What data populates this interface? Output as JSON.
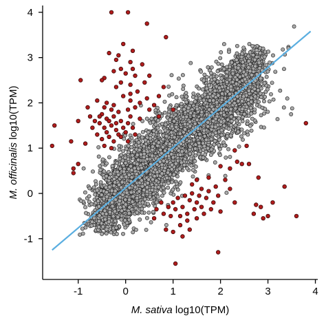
{
  "chart_data": {
    "type": "scatter",
    "xlabel_species": "M. sativa",
    "xlabel_unit": " log10(TPM)",
    "ylabel_species": "M. officinalis",
    "ylabel_unit": " log10(TPM)",
    "xlim": [
      -1.75,
      4.05
    ],
    "ylim": [
      -1.9,
      4.15
    ],
    "x_ticks": [
      "-1",
      "0",
      "1",
      "2",
      "3",
      "4"
    ],
    "y_ticks": [
      "-1",
      "0",
      "1",
      "2",
      "3",
      "4"
    ],
    "grid": false,
    "legend": "none",
    "colors": {
      "background_points_fill": "#a9a9a9",
      "background_points_stroke": "#2b2b2b",
      "highlight_points_fill": "#b01c1c",
      "highlight_points_stroke": "#3a0a0a",
      "fit_line": "#5aaee0"
    },
    "fit_line": {
      "x": [
        -1.55,
        3.9
      ],
      "y": [
        -1.25,
        3.58
      ]
    },
    "highlight_points": [
      [
        -0.3,
        4.0
      ],
      [
        0.05,
        4.0
      ],
      [
        0.45,
        3.75
      ],
      [
        0.85,
        3.45
      ],
      [
        -0.15,
        3.05
      ],
      [
        -0.2,
        2.95
      ],
      [
        -0.35,
        3.1
      ],
      [
        -0.05,
        3.3
      ],
      [
        0.1,
        2.9
      ],
      [
        0.15,
        2.75
      ],
      [
        -0.1,
        2.75
      ],
      [
        -0.25,
        2.7
      ],
      [
        0.0,
        2.65
      ],
      [
        0.2,
        2.6
      ],
      [
        -0.45,
        2.55
      ],
      [
        -0.1,
        2.45
      ],
      [
        0.1,
        2.4
      ],
      [
        -0.2,
        2.35
      ],
      [
        0.4,
        2.45
      ],
      [
        0.25,
        2.25
      ],
      [
        0.45,
        2.1
      ],
      [
        0.6,
        1.95
      ],
      [
        -0.05,
        2.15
      ],
      [
        0.1,
        2.05
      ],
      [
        -0.4,
        2.0
      ],
      [
        -0.6,
        2.05
      ],
      [
        -0.8,
        1.9
      ],
      [
        -0.3,
        1.85
      ],
      [
        -0.15,
        1.8
      ],
      [
        0.05,
        1.85
      ],
      [
        0.2,
        1.9
      ],
      [
        0.3,
        2.0
      ],
      [
        0.5,
        1.85
      ],
      [
        -0.5,
        1.75
      ],
      [
        -0.4,
        1.65
      ],
      [
        -0.25,
        1.7
      ],
      [
        -0.1,
        1.6
      ],
      [
        0.05,
        1.55
      ],
      [
        -0.55,
        1.55
      ],
      [
        -0.45,
        1.45
      ],
      [
        -0.3,
        1.5
      ],
      [
        -0.2,
        1.4
      ],
      [
        -0.05,
        1.45
      ],
      [
        0.1,
        1.7
      ],
      [
        -0.6,
        1.3
      ],
      [
        -0.5,
        1.2
      ],
      [
        -0.35,
        1.25
      ],
      [
        -0.25,
        1.15
      ],
      [
        -0.15,
        1.3
      ],
      [
        0.0,
        1.35
      ],
      [
        -0.7,
        1.45
      ],
      [
        -0.85,
        1.1
      ],
      [
        -0.45,
        1.05
      ],
      [
        -0.3,
        1.0
      ],
      [
        -0.2,
        1.55
      ],
      [
        -0.4,
        1.35
      ],
      [
        -0.1,
        1.25
      ],
      [
        0.15,
        1.45
      ],
      [
        -0.55,
        1.7
      ],
      [
        -0.35,
        1.6
      ],
      [
        -0.65,
        1.6
      ],
      [
        -0.75,
        1.7
      ],
      [
        -0.25,
        1.95
      ],
      [
        -0.45,
        1.9
      ],
      [
        -1.0,
        1.6
      ],
      [
        -1.15,
        1.15
      ],
      [
        -1.0,
        0.65
      ],
      [
        -1.1,
        0.55
      ],
      [
        -1.1,
        0.45
      ],
      [
        -1.55,
        1.05
      ],
      [
        -1.5,
        1.5
      ],
      [
        -0.95,
        2.5
      ],
      [
        0.15,
        3.15
      ],
      [
        0.35,
        2.85
      ],
      [
        0.5,
        2.6
      ],
      [
        0.8,
        2.35
      ],
      [
        0.7,
        2.15
      ],
      [
        1.0,
        1.85
      ],
      [
        0.7,
        1.7
      ],
      [
        -0.5,
        2.5
      ],
      [
        0.1,
        2.2
      ],
      [
        0.3,
        1.65
      ],
      [
        0.2,
        1.3
      ],
      [
        0.05,
        1.15
      ],
      [
        1.0,
        -0.2
      ],
      [
        1.05,
        -0.35
      ],
      [
        1.15,
        -0.5
      ],
      [
        1.2,
        -0.3
      ],
      [
        1.3,
        -0.45
      ],
      [
        1.35,
        -0.15
      ],
      [
        1.45,
        -0.35
      ],
      [
        1.5,
        -0.2
      ],
      [
        1.55,
        -0.05
      ],
      [
        1.6,
        -0.3
      ],
      [
        1.7,
        -0.1
      ],
      [
        1.75,
        0.05
      ],
      [
        1.85,
        -0.2
      ],
      [
        1.9,
        0.15
      ],
      [
        1.95,
        -0.05
      ],
      [
        1.6,
        0.1
      ],
      [
        1.4,
        0.0
      ],
      [
        1.25,
        -0.05
      ],
      [
        1.1,
        -0.1
      ],
      [
        0.95,
        -0.5
      ],
      [
        0.9,
        -0.3
      ],
      [
        0.8,
        -0.45
      ],
      [
        0.75,
        -0.2
      ],
      [
        1.15,
        -0.7
      ],
      [
        1.3,
        -0.6
      ],
      [
        1.5,
        -0.55
      ],
      [
        1.65,
        -0.45
      ],
      [
        1.8,
        -0.35
      ],
      [
        2.0,
        -0.4
      ],
      [
        2.1,
        0.3
      ],
      [
        2.2,
        0.1
      ],
      [
        2.3,
        -0.2
      ],
      [
        2.0,
        0.6
      ],
      [
        2.2,
        0.55
      ],
      [
        2.35,
        0.7
      ],
      [
        2.45,
        0.65
      ],
      [
        2.6,
        0.65
      ],
      [
        2.8,
        0.35
      ],
      [
        2.75,
        -0.25
      ],
      [
        2.7,
        -0.45
      ],
      [
        2.85,
        -0.3
      ],
      [
        2.9,
        -0.55
      ],
      [
        3.1,
        -0.2
      ],
      [
        3.0,
        -0.5
      ],
      [
        3.6,
        -0.5
      ],
      [
        3.35,
        0.15
      ],
      [
        3.8,
        1.55
      ],
      [
        2.55,
        1.05
      ],
      [
        2.3,
        0.95
      ],
      [
        1.05,
        -1.55
      ],
      [
        1.95,
        -1.3
      ],
      [
        0.85,
        -0.8
      ],
      [
        1.0,
        -0.85
      ],
      [
        1.2,
        -0.95
      ],
      [
        1.35,
        -0.8
      ],
      [
        1.4,
        0.2
      ],
      [
        1.5,
        0.3
      ],
      [
        1.75,
        0.35
      ],
      [
        0.65,
        -0.35
      ],
      [
        0.6,
        -0.55
      ]
    ]
  }
}
